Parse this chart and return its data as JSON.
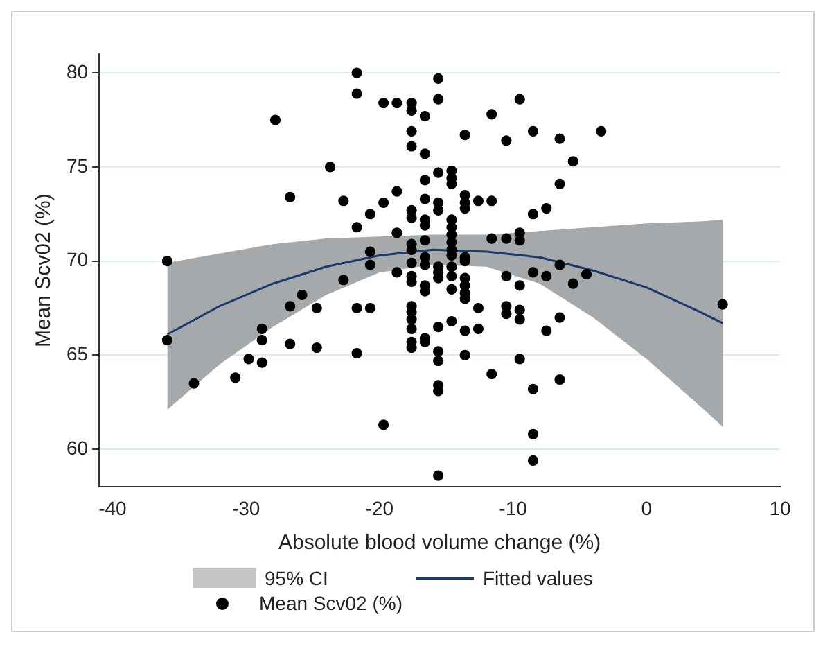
{
  "chart_data": {
    "type": "scatter",
    "xlabel": "Absolute blood volume change (%)",
    "ylabel": "Mean Scv02 (%)",
    "xlim": [
      -41,
      10
    ],
    "xticks": [
      -40,
      -30,
      -20,
      -10,
      0,
      10
    ],
    "ylim": [
      58,
      81
    ],
    "yticks": [
      60,
      65,
      70,
      75,
      80
    ],
    "grid": "y",
    "legend": "bottom",
    "marker": "circle",
    "annotations": [
      "95% CI"
    ],
    "series": [
      {
        "name": "Fitted values",
        "type": "line",
        "color": "#1a3a6b",
        "marker": "none",
        "x": [
          -35.9,
          -32,
          -28,
          -24,
          -20,
          -16,
          -12,
          -8,
          -4,
          0,
          4,
          5.7
        ],
        "values": [
          66.1,
          67.6,
          68.8,
          69.7,
          70.3,
          70.6,
          70.5,
          70.2,
          69.5,
          68.6,
          67.3,
          66.7
        ],
        "lower": [
          62.1,
          64.5,
          66.5,
          68.2,
          69.4,
          69.8,
          69.7,
          68.8,
          67.0,
          64.8,
          62.3,
          61.2
        ],
        "upper": [
          69.9,
          70.4,
          70.9,
          71.2,
          71.3,
          71.4,
          71.4,
          71.6,
          71.8,
          72.0,
          72.1,
          72.2
        ]
      },
      {
        "name": "Mean Scv02 (%)",
        "type": "scatter",
        "color": "#000000",
        "x": [
          -35.9,
          -35.9,
          -33.9,
          -30.8,
          -29.8,
          -28.8,
          -28.8,
          -28.8,
          -27.8,
          -26.7,
          -26.7,
          -26.7,
          -25.8,
          -24.7,
          -24.7,
          -23.7,
          -22.7,
          -22.7,
          -21.7,
          -21.7,
          -21.7,
          -21.7,
          -21.7,
          -20.7,
          -20.7,
          -20.7,
          -20.7,
          -19.7,
          -19.7,
          -19.7,
          -18.7,
          -18.7,
          -18.7,
          -18.7,
          -17.6,
          -17.6,
          -17.6,
          -17.6,
          -17.6,
          -17.6,
          -17.6,
          -17.6,
          -17.6,
          -17.6,
          -17.6,
          -17.6,
          -17.6,
          -17.6,
          -17.6,
          -17.6,
          -17.6,
          -16.6,
          -16.6,
          -16.6,
          -16.6,
          -16.6,
          -16.6,
          -16.6,
          -16.6,
          -16.6,
          -16.6,
          -16.6,
          -16.6,
          -16.6,
          -15.6,
          -15.6,
          -15.6,
          -15.6,
          -15.6,
          -15.6,
          -15.6,
          -15.6,
          -15.6,
          -15.6,
          -15.6,
          -15.6,
          -15.6,
          -15.6,
          -14.6,
          -14.6,
          -14.6,
          -14.6,
          -14.6,
          -14.6,
          -14.6,
          -14.6,
          -14.6,
          -14.6,
          -14.6,
          -14.6,
          -14.6,
          -13.6,
          -13.6,
          -13.6,
          -13.6,
          -13.6,
          -13.6,
          -13.6,
          -13.6,
          -13.6,
          -13.6,
          -13.6,
          -13.6,
          -12.6,
          -12.6,
          -12.6,
          -11.6,
          -11.6,
          -11.6,
          -11.6,
          -10.5,
          -10.5,
          -10.5,
          -10.5,
          -10.5,
          -9.5,
          -9.5,
          -9.5,
          -9.5,
          -9.5,
          -9.5,
          -9.5,
          -8.5,
          -8.5,
          -8.5,
          -8.5,
          -8.5,
          -8.5,
          -7.5,
          -7.5,
          -7.5,
          -6.5,
          -6.5,
          -6.5,
          -6.5,
          -6.5,
          -5.5,
          -5.5,
          -4.5,
          -3.4,
          5.7
        ],
        "values": [
          70.0,
          65.8,
          63.5,
          63.8,
          64.8,
          66.4,
          65.8,
          64.6,
          77.5,
          73.4,
          67.6,
          65.6,
          68.2,
          67.5,
          65.4,
          75.0,
          73.2,
          69.0,
          80.0,
          78.9,
          71.8,
          67.5,
          65.1,
          72.5,
          70.5,
          69.8,
          67.5,
          78.4,
          73.1,
          61.3,
          78.4,
          73.7,
          71.5,
          69.4,
          78.4,
          78.0,
          76.9,
          76.1,
          72.7,
          72.3,
          70.9,
          70.6,
          69.9,
          69.2,
          68.9,
          67.6,
          67.3,
          66.9,
          66.4,
          65.7,
          65.4,
          77.7,
          75.7,
          74.3,
          73.3,
          72.2,
          71.9,
          71.1,
          70.2,
          69.8,
          68.7,
          68.4,
          65.9,
          65.7,
          79.7,
          78.6,
          74.7,
          73.1,
          72.7,
          69.7,
          69.4,
          69.1,
          66.5,
          65.2,
          64.7,
          63.4,
          63.1,
          58.6,
          74.8,
          74.4,
          74.1,
          72.2,
          71.8,
          71.4,
          71.0,
          70.6,
          70.3,
          69.7,
          69.2,
          68.5,
          66.8,
          76.7,
          73.5,
          73.1,
          72.8,
          70.2,
          70.0,
          69.1,
          68.7,
          68.3,
          68.0,
          66.3,
          65.0,
          73.2,
          67.5,
          66.4,
          77.8,
          73.2,
          71.2,
          64.0,
          76.4,
          71.2,
          69.2,
          67.6,
          67.2,
          78.6,
          71.5,
          71.1,
          68.7,
          67.4,
          66.9,
          64.8,
          76.9,
          72.5,
          69.4,
          63.2,
          60.8,
          59.4,
          72.8,
          69.2,
          66.3,
          76.5,
          74.1,
          69.8,
          67.0,
          63.7,
          75.3,
          68.8,
          69.3,
          76.9,
          67.7
        ]
      }
    ]
  }
}
